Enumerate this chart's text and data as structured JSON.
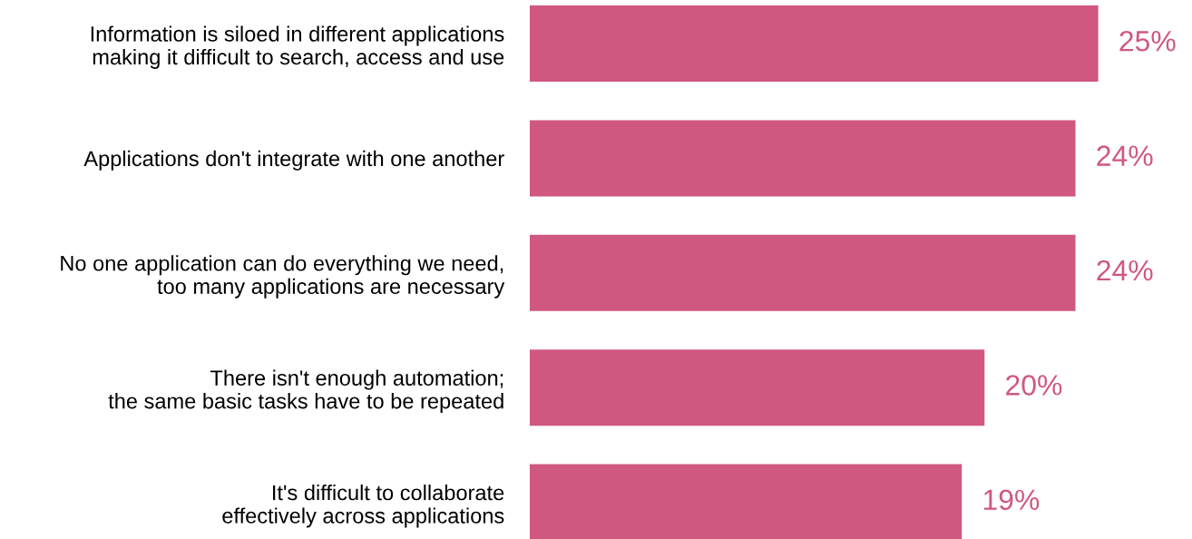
{
  "chart_data": {
    "type": "bar",
    "orientation": "horizontal",
    "categories": [
      "Information is siloed in different applications\nmaking it difficult to search, access and use",
      "Applications don't integrate with one another",
      "No one application can do everything we need,\ntoo many applications are necessary",
      "There isn't enough automation;\nthe same basic tasks have to be repeated",
      "It's difficult to collaborate\neffectively across applications"
    ],
    "values": [
      25,
      24,
      24,
      20,
      19
    ],
    "value_labels": [
      "25%",
      "24%",
      "24%",
      "20%",
      "19%"
    ],
    "color": "#d05780",
    "tick_labels": "y",
    "grid": false,
    "legend": false
  }
}
